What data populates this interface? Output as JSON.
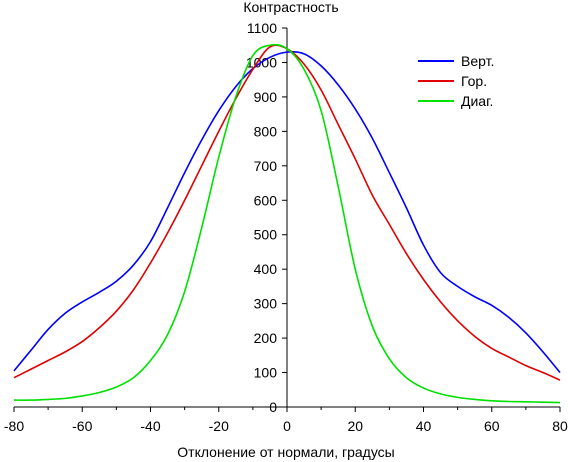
{
  "chart_data": {
    "type": "line",
    "title": "",
    "xlabel": "Отклонение от нормали, градусы",
    "ylabel": "Контрастность",
    "xlim": [
      -80,
      80
    ],
    "ylim": [
      0,
      1100
    ],
    "x_ticks": [
      -80,
      -60,
      -40,
      -20,
      0,
      20,
      40,
      60,
      80
    ],
    "y_ticks": [
      0,
      100,
      200,
      300,
      400,
      500,
      600,
      700,
      800,
      900,
      1000,
      1100
    ],
    "grid": false,
    "legend_position": "top-right",
    "series": [
      {
        "name": "Верт.",
        "color": "#0000ff",
        "x": [
          -80,
          -75,
          -70,
          -65,
          -60,
          -55,
          -50,
          -45,
          -40,
          -35,
          -30,
          -25,
          -20,
          -15,
          -10,
          -5,
          0,
          5,
          10,
          15,
          20,
          25,
          30,
          35,
          40,
          45,
          50,
          55,
          60,
          65,
          70,
          75,
          80
        ],
        "y": [
          105,
          165,
          225,
          272,
          305,
          333,
          365,
          412,
          480,
          578,
          680,
          775,
          860,
          930,
          982,
          1015,
          1030,
          1025,
          990,
          935,
          865,
          780,
          680,
          578,
          470,
          390,
          350,
          320,
          295,
          260,
          215,
          160,
          100
        ]
      },
      {
        "name": "Гор.",
        "color": "#e00000",
        "x": [
          -80,
          -75,
          -70,
          -65,
          -60,
          -55,
          -50,
          -45,
          -40,
          -35,
          -30,
          -25,
          -20,
          -15,
          -10,
          -5,
          0,
          5,
          10,
          15,
          20,
          25,
          30,
          35,
          40,
          45,
          50,
          55,
          60,
          65,
          70,
          75,
          80
        ],
        "y": [
          85,
          110,
          135,
          160,
          190,
          230,
          278,
          340,
          418,
          505,
          600,
          700,
          800,
          895,
          980,
          1045,
          1040,
          995,
          920,
          820,
          720,
          615,
          530,
          445,
          370,
          305,
          250,
          205,
          170,
          145,
          120,
          100,
          78
        ]
      },
      {
        "name": "Диаг.",
        "color": "#00e000",
        "x": [
          -80,
          -75,
          -70,
          -65,
          -60,
          -55,
          -50,
          -45,
          -40,
          -35,
          -30,
          -25,
          -20,
          -15,
          -10,
          -5,
          0,
          5,
          10,
          15,
          20,
          25,
          30,
          35,
          40,
          45,
          50,
          55,
          60,
          65,
          70,
          75,
          80
        ],
        "y": [
          20,
          20,
          22,
          25,
          32,
          42,
          58,
          85,
          135,
          210,
          335,
          520,
          725,
          900,
          1020,
          1050,
          1040,
          980,
          860,
          640,
          400,
          235,
          140,
          85,
          55,
          38,
          28,
          22,
          18,
          16,
          15,
          14,
          13
        ]
      }
    ]
  }
}
